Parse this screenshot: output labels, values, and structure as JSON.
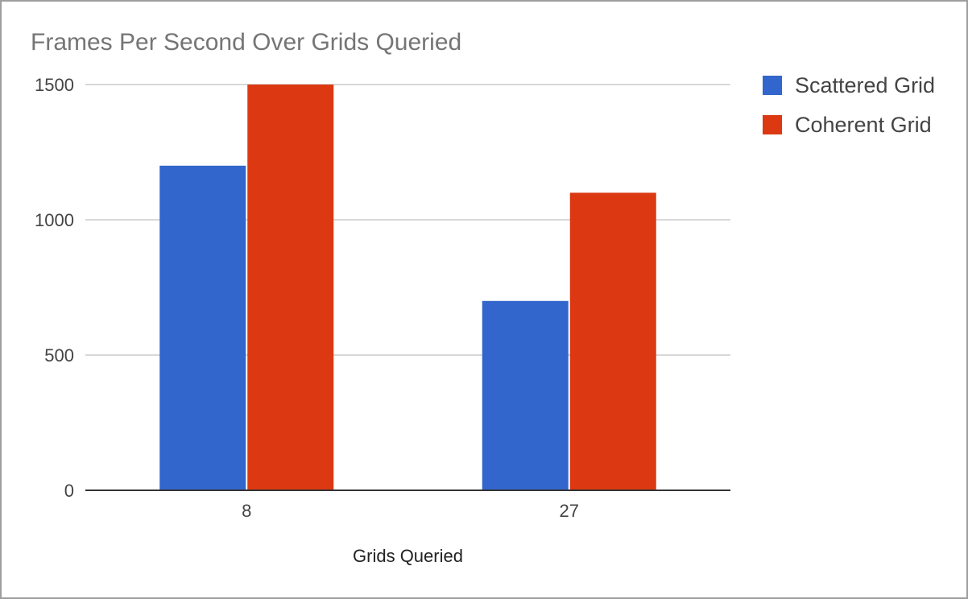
{
  "chart_data": {
    "type": "bar",
    "title": "Frames Per Second Over Grids Queried",
    "xlabel": "Grids Queried",
    "ylabel": "",
    "categories": [
      "8",
      "27"
    ],
    "series": [
      {
        "name": "Scattered Grid",
        "values": [
          1200,
          700
        ],
        "color": "#3366cc"
      },
      {
        "name": "Coherent Grid",
        "values": [
          1500,
          1100
        ],
        "color": "#dc3912"
      }
    ],
    "ylim": [
      0,
      1500
    ],
    "yticks": [
      0,
      500,
      1000,
      1500
    ],
    "grid": true,
    "legend": "right"
  }
}
